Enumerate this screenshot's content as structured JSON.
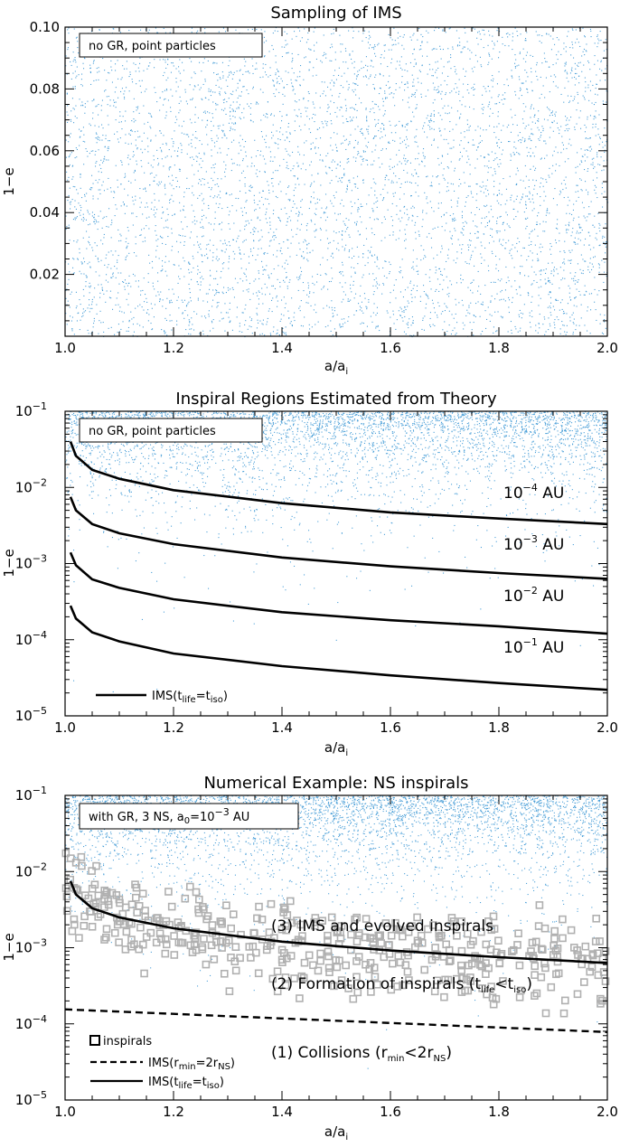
{
  "colors": {
    "dots": "#4a9fd8",
    "squares": "#b0b0b0",
    "lines": "#000000"
  },
  "chart_data": [
    {
      "type": "scatter",
      "title": "Sampling of IMS",
      "xlabel_main": "a/a",
      "xlabel_sub": "i",
      "ylabel": "1−e",
      "xlim": [
        1.0,
        2.0
      ],
      "ylim": [
        0.0,
        0.1
      ],
      "yscale": "linear",
      "xticks": [
        "1.0",
        "1.2",
        "1.4",
        "1.6",
        "1.8",
        "2.0"
      ],
      "yticks": [
        "0.02",
        "0.04",
        "0.06",
        "0.08",
        "0.10"
      ],
      "box_label": "no GR, point particles",
      "dot_distribution": "uniform in 1-e over [0, 0.1], a/ai over [1, 2]"
    },
    {
      "type": "line",
      "title": "Inspiral Regions Estimated from Theory",
      "xlabel_main": "a/a",
      "xlabel_sub": "i",
      "ylabel": "1−e",
      "xlim": [
        1.0,
        2.0
      ],
      "ylim": [
        1e-05,
        0.1
      ],
      "yscale": "log",
      "xticks": [
        "1.0",
        "1.2",
        "1.4",
        "1.6",
        "1.8",
        "2.0"
      ],
      "yticks": [
        {
          "base": "10",
          "exp": "−1"
        },
        {
          "base": "10",
          "exp": "−2"
        },
        {
          "base": "10",
          "exp": "−3"
        },
        {
          "base": "10",
          "exp": "−4"
        },
        {
          "base": "10",
          "exp": "−5"
        }
      ],
      "box_label": "no GR, point particles",
      "series": [
        {
          "label_base": "10",
          "label_exp": "−4",
          "label_unit": " AU",
          "x": [
            1.01,
            1.02,
            1.05,
            1.1,
            1.2,
            1.4,
            1.6,
            1.8,
            2.0
          ],
          "y": [
            0.04,
            0.026,
            0.017,
            0.013,
            0.0092,
            0.0062,
            0.0047,
            0.0039,
            0.0033
          ]
        },
        {
          "label_base": "10",
          "label_exp": "−3",
          "label_unit": " AU",
          "x": [
            1.01,
            1.02,
            1.05,
            1.1,
            1.2,
            1.4,
            1.6,
            1.8,
            2.0
          ],
          "y": [
            0.0075,
            0.005,
            0.0033,
            0.0025,
            0.0018,
            0.0012,
            0.00092,
            0.00075,
            0.00063
          ]
        },
        {
          "label_base": "10",
          "label_exp": "−2",
          "label_unit": " AU",
          "x": [
            1.01,
            1.02,
            1.05,
            1.1,
            1.2,
            1.4,
            1.6,
            1.8,
            2.0
          ],
          "y": [
            0.0014,
            0.00095,
            0.00062,
            0.00048,
            0.00034,
            0.00023,
            0.00018,
            0.00015,
            0.00012
          ]
        },
        {
          "label_base": "10",
          "label_exp": "−1",
          "label_unit": " AU",
          "x": [
            1.01,
            1.02,
            1.05,
            1.1,
            1.2,
            1.4,
            1.6,
            1.8,
            2.0
          ],
          "y": [
            0.00028,
            0.00019,
            0.000125,
            9.5e-05,
            6.6e-05,
            4.5e-05,
            3.4e-05,
            2.7e-05,
            2.2e-05
          ]
        }
      ],
      "legend": {
        "main": "IMS(t",
        "sub1": "life",
        "mid": "=t",
        "sub2": "iso",
        "end": ")"
      },
      "dot_distribution": "uniform in 1-e over [0, 0.1]"
    },
    {
      "type": "scatter",
      "title": "Numerical Example: NS inspirals",
      "xlabel_main": "a/a",
      "xlabel_sub": "i",
      "ylabel": "1−e",
      "xlim": [
        1.0,
        2.0
      ],
      "ylim": [
        1e-05,
        0.1
      ],
      "yscale": "log",
      "xticks": [
        "1.0",
        "1.2",
        "1.4",
        "1.6",
        "1.8",
        "2.0"
      ],
      "yticks": [
        {
          "base": "10",
          "exp": "−1"
        },
        {
          "base": "10",
          "exp": "−2"
        },
        {
          "base": "10",
          "exp": "−3"
        },
        {
          "base": "10",
          "exp": "−4"
        },
        {
          "base": "10",
          "exp": "−5"
        }
      ],
      "box_label": {
        "main": "with GR, 3 NS, a",
        "sub": "0",
        "end": "=10",
        "exp": "−3",
        "unit": " AU"
      },
      "solid_line": {
        "x": [
          1.01,
          1.02,
          1.05,
          1.1,
          1.2,
          1.4,
          1.6,
          1.8,
          2.0
        ],
        "y": [
          0.0075,
          0.005,
          0.0033,
          0.0025,
          0.0018,
          0.0012,
          0.00092,
          0.00075,
          0.00063
        ]
      },
      "dashed_line": {
        "x": [
          1.0,
          2.0
        ],
        "y": [
          0.000155,
          7.8e-05
        ]
      },
      "region_labels": [
        {
          "main": "(3) IMS and evolved inspirals"
        },
        {
          "main": "(2) Formation of inspirals (t",
          "sub1": "life",
          "mid": "<t",
          "sub2": "iso",
          "end": ")"
        },
        {
          "main": "(1) Collisions (r",
          "sub1": "min",
          "mid": "<2r",
          "sub2": "NS",
          "end": ")"
        }
      ],
      "legend": [
        {
          "kind": "square",
          "main": "inspirals"
        },
        {
          "kind": "dashed",
          "main": "IMS(r",
          "sub1": "min",
          "mid": "=2r",
          "sub2": "NS",
          "end": ")"
        },
        {
          "kind": "solid",
          "main": "IMS(t",
          "sub1": "life",
          "mid": "=t",
          "sub2": "iso",
          "end": ")"
        }
      ],
      "square_distribution": "scattered between 1-e = 1e-4 and 3e-2, concentrated around the solid curve"
    }
  ]
}
